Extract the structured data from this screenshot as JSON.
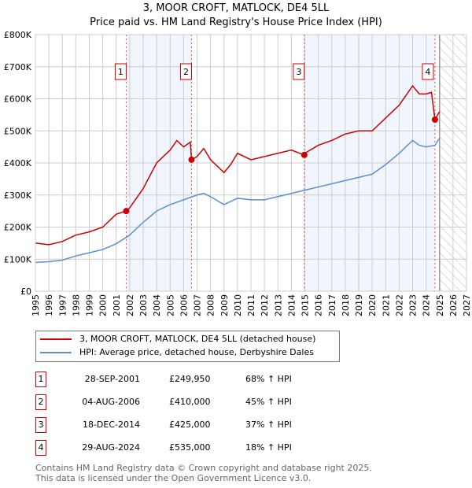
{
  "chart_data": {
    "type": "line",
    "title": "3, MOOR CROFT, MATLOCK, DE4 5LL",
    "subtitle": "Price paid vs. HM Land Registry's House Price Index (HPI)",
    "xlim": [
      1995,
      2027
    ],
    "ylim": [
      0,
      800000
    ],
    "x_ticks": [
      "1995",
      "1996",
      "1997",
      "1998",
      "1999",
      "2000",
      "2001",
      "2002",
      "2003",
      "2004",
      "2005",
      "2006",
      "2007",
      "2008",
      "2009",
      "2010",
      "2011",
      "2012",
      "2013",
      "2014",
      "2015",
      "2016",
      "2017",
      "2018",
      "2019",
      "2020",
      "2021",
      "2022",
      "2023",
      "2024",
      "2025",
      "2026",
      "2027"
    ],
    "y_ticks": [
      {
        "v": 0,
        "label": "£0"
      },
      {
        "v": 100000,
        "label": "£100K"
      },
      {
        "v": 200000,
        "label": "£200K"
      },
      {
        "v": 300000,
        "label": "£300K"
      },
      {
        "v": 400000,
        "label": "£400K"
      },
      {
        "v": 500000,
        "label": "£500K"
      },
      {
        "v": 600000,
        "label": "£600K"
      },
      {
        "v": 700000,
        "label": "£700K"
      },
      {
        "v": 800000,
        "label": "£800K"
      }
    ],
    "grid": true,
    "shaded_periods": [
      [
        2001.74,
        2006.59
      ],
      [
        2014.96,
        2024.66
      ]
    ],
    "forecast_from": 2025.0,
    "series": [
      {
        "name": "3, MOOR CROFT, MATLOCK, DE4 5LL (detached house)",
        "color": "#cc0000",
        "x": [
          1995,
          1996,
          1997,
          1998,
          1999,
          2000,
          2001,
          2001.74,
          2002,
          2003,
          2004,
          2005,
          2005.5,
          2006,
          2006.5,
          2006.59,
          2007,
          2007.5,
          2008,
          2009,
          2009.5,
          2010,
          2011,
          2012,
          2013,
          2014,
          2014.96,
          2015,
          2016,
          2017,
          2018,
          2019,
          2020,
          2021,
          2022,
          2023,
          2023.5,
          2024,
          2024.4,
          2024.66,
          2025
        ],
        "y": [
          150000,
          145000,
          155000,
          175000,
          185000,
          200000,
          240000,
          249950,
          260000,
          320000,
          400000,
          440000,
          470000,
          450000,
          465000,
          410000,
          420000,
          445000,
          410000,
          370000,
          395000,
          430000,
          410000,
          420000,
          430000,
          440000,
          425000,
          430000,
          455000,
          470000,
          490000,
          500000,
          500000,
          540000,
          580000,
          640000,
          615000,
          615000,
          620000,
          535000,
          560000
        ]
      },
      {
        "name": "HPI: Average price, detached house, Derbyshire Dales",
        "color": "#5b8fd4",
        "x": [
          1995,
          1996,
          1997,
          1998,
          1999,
          2000,
          2001,
          2002,
          2003,
          2004,
          2005,
          2006,
          2007,
          2007.5,
          2008,
          2009,
          2010,
          2011,
          2012,
          2013,
          2014,
          2015,
          2016,
          2017,
          2018,
          2019,
          2020,
          2021,
          2022,
          2023,
          2023.5,
          2024,
          2024.66,
          2025
        ],
        "y": [
          90000,
          92000,
          97000,
          110000,
          120000,
          130000,
          148000,
          175000,
          215000,
          250000,
          270000,
          285000,
          300000,
          305000,
          295000,
          270000,
          290000,
          285000,
          285000,
          295000,
          305000,
          315000,
          325000,
          335000,
          345000,
          355000,
          365000,
          395000,
          430000,
          470000,
          455000,
          450000,
          455000,
          478000
        ]
      }
    ],
    "sales": [
      {
        "n": "1",
        "x": 2001.74,
        "price": 249950,
        "date": "28-SEP-2001",
        "price_label": "£249,950",
        "hpi": "68% ↑ HPI"
      },
      {
        "n": "2",
        "x": 2006.59,
        "price": 410000,
        "date": "04-AUG-2006",
        "price_label": "£410,000",
        "hpi": "45% ↑ HPI"
      },
      {
        "n": "3",
        "x": 2014.96,
        "price": 425000,
        "date": "18-DEC-2014",
        "price_label": "£425,000",
        "hpi": "37% ↑ HPI"
      },
      {
        "n": "4",
        "x": 2024.66,
        "price": 535000,
        "date": "29-AUG-2024",
        "price_label": "£535,000",
        "hpi": "18% ↑ HPI"
      }
    ]
  },
  "legend": {
    "price": "3, MOOR CROFT, MATLOCK, DE4 5LL (detached house)",
    "hpi": "HPI: Average price, detached house, Derbyshire Dales"
  },
  "footer": {
    "line1": "Contains HM Land Registry data © Crown copyright and database right 2025.",
    "line2": "This data is licensed under the Open Government Licence v3.0."
  }
}
